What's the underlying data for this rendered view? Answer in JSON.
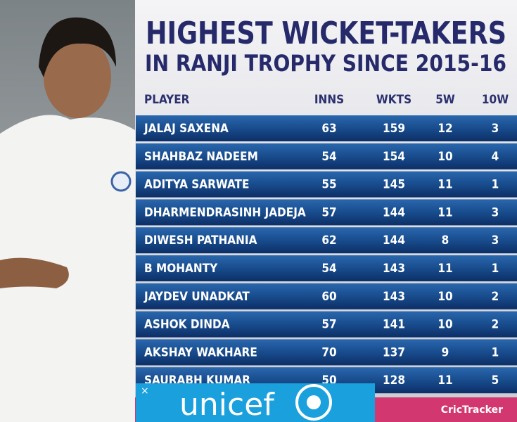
{
  "header": {
    "title": [
      "HIGHEST WICKET-TAKERS",
      "IN RANJI TROPHY SINCE 2015-16"
    ]
  },
  "table": {
    "columns": [
      "PLAYER",
      "INNS",
      "WKTS",
      "5W",
      "10W"
    ],
    "rows": [
      [
        "JALAJ SAXENA",
        "63",
        "159",
        "12",
        "3"
      ],
      [
        "SHAHBAZ NADEEM",
        "54",
        "154",
        "10",
        "4"
      ],
      [
        "ADITYA SARWATE",
        "55",
        "145",
        "11",
        "1"
      ],
      [
        "DHARMENDRASINH JADEJA",
        "57",
        "144",
        "11",
        "3"
      ],
      [
        "DIWESH PATHANIA",
        "62",
        "144",
        "8",
        "3"
      ],
      [
        "B MOHANTY",
        "54",
        "143",
        "11",
        "1"
      ],
      [
        "JAYDEV UNADKAT",
        "60",
        "143",
        "10",
        "2"
      ],
      [
        "ASHOK DINDA",
        "57",
        "141",
        "10",
        "2"
      ],
      [
        "AKSHAY WAKHARE",
        "70",
        "137",
        "9",
        "1"
      ],
      [
        "SAURABH KUMAR",
        "50",
        "128",
        "11",
        "5"
      ]
    ]
  },
  "ad": {
    "text": "unicef"
  },
  "footer": {
    "logo": "CricTracker"
  }
}
